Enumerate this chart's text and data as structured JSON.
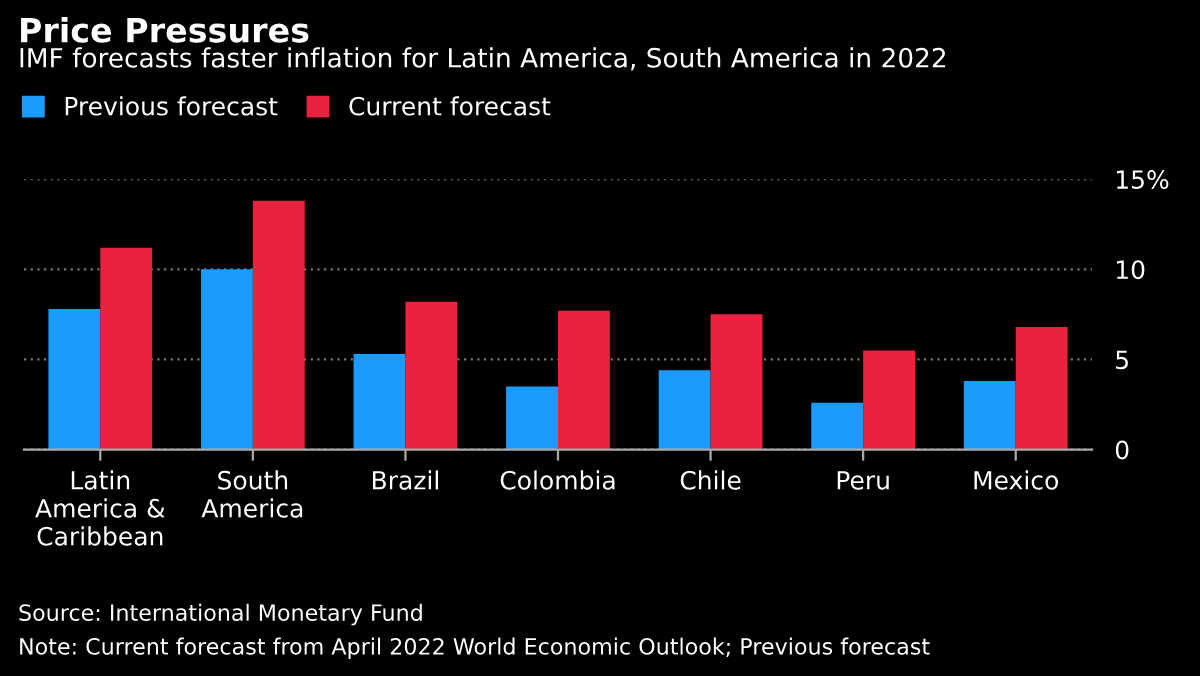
{
  "chart_data": {
    "type": "bar",
    "title": "Price Pressures",
    "subtitle": "IMF forecasts faster inflation for Latin America, South America in 2022",
    "categories": [
      "Latin\nAmerica &\nCaribbean",
      "South\nAmerica",
      "Brazil",
      "Colombia",
      "Chile",
      "Peru",
      "Mexico"
    ],
    "series": [
      {
        "name": "Previous forecast",
        "color": "#1a9cff",
        "values": [
          7.8,
          10.0,
          5.3,
          3.5,
          4.4,
          2.6,
          3.8
        ]
      },
      {
        "name": "Current forecast",
        "color": "#e8223f",
        "values": [
          11.2,
          13.8,
          8.2,
          7.7,
          7.5,
          5.5,
          6.8
        ]
      }
    ],
    "ylim": [
      0,
      15
    ],
    "yticks": [
      0,
      5,
      10,
      {
        "value": 15,
        "label": "15%"
      }
    ],
    "grid": "y",
    "legend": "top left",
    "annotations": [
      "Source: International Monetary Fund",
      "Note: Current forecast from April 2022 World Economic Outlook; Previous forecast"
    ]
  }
}
